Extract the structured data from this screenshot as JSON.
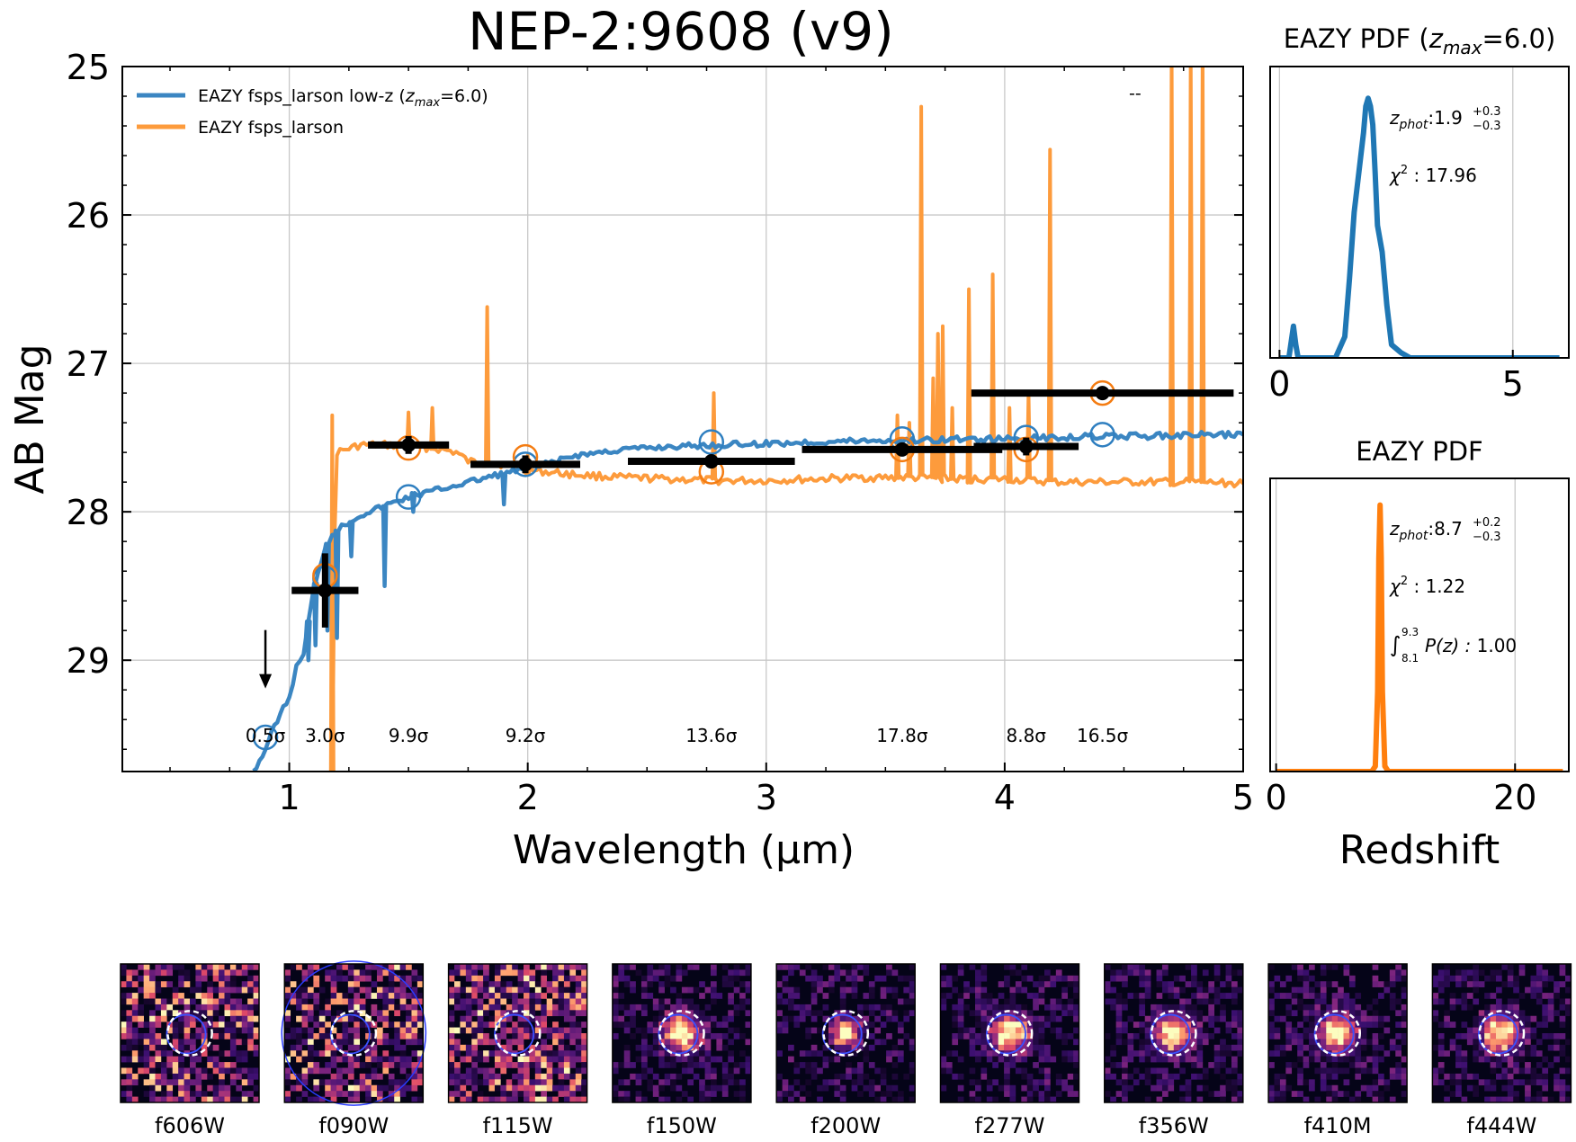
{
  "title": "NEP-2:9608 (v9)",
  "colors": {
    "blue": "#3b86c2",
    "orange": "#fd9b3c",
    "orange_dark": "#f47c12",
    "black": "#000000"
  },
  "chart_data": [
    {
      "id": "sed",
      "type": "line",
      "title": "NEP-2:9608 (v9)",
      "xlabel": "Wavelength (µm)",
      "ylabel": "AB Mag",
      "xlim": [
        0.3,
        5.0
      ],
      "ylim": [
        29.75,
        25.0
      ],
      "xticks": [
        1,
        2,
        3,
        4,
        5
      ],
      "yticks": [
        25,
        26,
        27,
        28,
        29
      ],
      "grid": true,
      "legend": [
        {
          "label": "EAZY fsps_larson low-z (",
          "sub": "max",
          "tail": "=6.0)",
          "color": "#3b86c2"
        },
        {
          "label": "EAZY fsps_larson",
          "color": "#fd9b3c"
        }
      ],
      "corner_mark": "--",
      "series": [
        {
          "name": "EAZY fsps_larson low-z (z_max=6.0)",
          "color": "#3b86c2",
          "x": [
            0.85,
            0.9,
            0.95,
            1.0,
            1.03,
            1.06,
            1.08,
            1.1,
            1.12,
            1.15,
            1.18,
            1.22,
            1.3,
            1.4,
            1.5,
            1.6,
            1.7,
            1.8,
            1.9,
            2.0,
            2.1,
            2.2,
            2.4,
            2.6,
            2.8,
            3.0,
            3.2,
            3.4,
            3.6,
            3.8,
            4.0,
            4.2,
            4.4,
            4.6,
            4.8,
            5.0
          ],
          "y": [
            29.75,
            29.6,
            29.4,
            29.25,
            29.05,
            28.95,
            28.75,
            28.55,
            28.4,
            28.25,
            28.15,
            28.1,
            28.02,
            27.96,
            27.9,
            27.86,
            27.82,
            27.78,
            27.74,
            27.71,
            27.67,
            27.62,
            27.58,
            27.56,
            27.55,
            27.54,
            27.53,
            27.52,
            27.52,
            27.51,
            27.51,
            27.5,
            27.49,
            27.49,
            27.48,
            27.48
          ],
          "dips": [
            [
              1.08,
              29.0
            ],
            [
              1.11,
              28.9
            ],
            [
              1.16,
              28.8
            ],
            [
              1.2,
              28.85
            ],
            [
              1.26,
              28.3
            ],
            [
              1.4,
              28.5
            ],
            [
              1.52,
              28.0
            ],
            [
              1.9,
              27.95
            ]
          ]
        },
        {
          "name": "EAZY fsps_larson",
          "color": "#fd9b3c",
          "x": [
            1.18,
            1.19,
            1.2,
            1.3,
            1.4,
            1.5,
            1.6,
            1.7,
            1.75,
            1.8,
            1.9,
            2.0,
            2.2,
            2.4,
            2.6,
            2.8,
            3.0,
            3.2,
            3.4,
            3.6,
            3.8,
            4.0,
            4.2,
            4.4,
            4.6,
            4.8,
            5.0
          ],
          "y": [
            29.9,
            28.2,
            27.6,
            27.55,
            27.55,
            27.56,
            27.57,
            27.6,
            27.66,
            27.67,
            27.68,
            27.72,
            27.75,
            27.77,
            27.78,
            27.79,
            27.79,
            27.78,
            27.77,
            27.77,
            27.78,
            27.78,
            27.8,
            27.8,
            27.8,
            27.8,
            27.81
          ],
          "spikes": [
            [
              1.18,
              27.35
            ],
            [
              1.5,
              27.33
            ],
            [
              1.6,
              27.3
            ],
            [
              1.83,
              26.62
            ],
            [
              2.0,
              27.62
            ],
            [
              2.78,
              27.2
            ],
            [
              3.55,
              27.35
            ],
            [
              3.6,
              27.4
            ],
            [
              3.65,
              25.27
            ],
            [
              3.7,
              27.1
            ],
            [
              3.72,
              26.8
            ],
            [
              3.74,
              26.75
            ],
            [
              3.78,
              27.3
            ],
            [
              3.85,
              26.5
            ],
            [
              3.95,
              26.4
            ],
            [
              4.02,
              27.3
            ],
            [
              4.1,
              27.2
            ],
            [
              4.19,
              25.56
            ],
            [
              4.7,
              24.9
            ],
            [
              4.78,
              24.9
            ],
            [
              4.83,
              24.9
            ]
          ]
        }
      ],
      "photometry": [
        {
          "x": 0.9,
          "xerr": 0.0,
          "y": 29.13,
          "yerr": 0.0,
          "upper_limit": true
        },
        {
          "x": 1.15,
          "xerr": 0.14,
          "y": 28.53,
          "yerr": 0.25
        },
        {
          "x": 1.5,
          "xerr": 0.17,
          "y": 27.55,
          "yerr": 0.06
        },
        {
          "x": 1.99,
          "xerr": 0.23,
          "y": 27.68,
          "yerr": 0.06
        },
        {
          "x": 2.77,
          "xerr": 0.35,
          "y": 27.66,
          "yerr": 0.04
        },
        {
          "x": 3.57,
          "xerr": 0.42,
          "y": 27.58,
          "yerr": 0.03
        },
        {
          "x": 4.09,
          "xerr": 0.22,
          "y": 27.56,
          "yerr": 0.06
        },
        {
          "x": 4.41,
          "xerr": 0.55,
          "y": 27.2,
          "yerr": 0.03
        }
      ],
      "model_blue": [
        [
          0.9,
          29.52
        ],
        [
          1.15,
          28.45
        ],
        [
          1.5,
          27.9
        ],
        [
          1.99,
          27.68
        ],
        [
          2.77,
          27.53
        ],
        [
          3.57,
          27.51
        ],
        [
          4.09,
          27.5
        ],
        [
          4.41,
          27.48
        ]
      ],
      "model_orange": [
        [
          1.15,
          28.43
        ],
        [
          1.5,
          27.57
        ],
        [
          1.99,
          27.63
        ],
        [
          2.77,
          27.73
        ],
        [
          3.57,
          27.58
        ],
        [
          4.09,
          27.58
        ],
        [
          4.41,
          27.2
        ]
      ],
      "snr_labels": [
        {
          "x": 0.9,
          "text": "0.5σ"
        },
        {
          "x": 1.15,
          "text": "3.0σ"
        },
        {
          "x": 1.5,
          "text": "9.9σ"
        },
        {
          "x": 1.99,
          "text": "9.2σ"
        },
        {
          "x": 2.77,
          "text": "13.6σ"
        },
        {
          "x": 3.57,
          "text": "17.8σ"
        },
        {
          "x": 4.09,
          "text": "8.8σ"
        },
        {
          "x": 4.41,
          "text": "16.5σ"
        }
      ]
    },
    {
      "id": "pdf_lowz",
      "type": "line",
      "title": "EAZY PDF (",
      "title_sub": "max",
      "title_tail": "=6.0)",
      "xlim": [
        -0.2,
        6.2
      ],
      "xticks": [
        0,
        5
      ],
      "ylim": [
        0,
        1.1
      ],
      "color": "#1f77b4",
      "x": [
        0.0,
        0.2,
        0.3,
        0.35,
        0.4,
        0.5,
        1.2,
        1.4,
        1.5,
        1.6,
        1.7,
        1.8,
        1.85,
        1.9,
        1.95,
        2.0,
        2.05,
        2.1,
        2.2,
        2.3,
        2.4,
        2.6,
        2.8,
        3.5,
        6.0
      ],
      "y": [
        0.0,
        0.0,
        0.12,
        0.05,
        0.0,
        0.0,
        0.0,
        0.08,
        0.3,
        0.55,
        0.7,
        0.85,
        0.95,
        0.98,
        0.95,
        0.88,
        0.7,
        0.5,
        0.4,
        0.2,
        0.05,
        0.02,
        0.0,
        0.0,
        0.0
      ],
      "annotations": {
        "zphot": "1.9",
        "zup": "+0.3",
        "zlo": "−0.3",
        "chi2": "17.96"
      }
    },
    {
      "id": "pdf_full",
      "type": "line",
      "title": "EAZY PDF",
      "xlabel": "Redshift",
      "xlim": [
        -0.5,
        24.5
      ],
      "xticks": [
        0,
        20
      ],
      "ylim": [
        0,
        1.1
      ],
      "color": "#ff7f0e",
      "x": [
        0.0,
        8.0,
        8.3,
        8.5,
        8.6,
        8.7,
        8.8,
        8.9,
        9.1,
        9.4,
        24.0
      ],
      "y": [
        0.0,
        0.0,
        0.02,
        0.3,
        0.8,
        1.0,
        0.8,
        0.3,
        0.02,
        0.0,
        0.0
      ],
      "annotations": {
        "zphot": "8.7",
        "zup": "+0.2",
        "zlo": "−0.3",
        "chi2": "1.22",
        "int_lo": "8.1",
        "int_hi": "9.3",
        "pz": "1.00"
      }
    }
  ],
  "labels": {
    "zphot_sub": "phot",
    "zphot_sep": ":",
    "chi_prefix": "χ",
    "chi_sup": "2",
    "chi_sep": " : ",
    "int_symbol": "∫",
    "int_body": "P(z) : "
  },
  "cutouts": [
    {
      "filter": "f606W",
      "kind": "noise",
      "dark": true
    },
    {
      "filter": "f090W",
      "kind": "noise",
      "dark": true,
      "big_circle": true
    },
    {
      "filter": "f115W",
      "kind": "noise",
      "dark": false
    },
    {
      "filter": "f150W",
      "kind": "source",
      "dark": false
    },
    {
      "filter": "f200W",
      "kind": "source_small",
      "dark": false
    },
    {
      "filter": "f277W",
      "kind": "source",
      "dark": false
    },
    {
      "filter": "f356W",
      "kind": "source",
      "dark": false
    },
    {
      "filter": "f410M",
      "kind": "source",
      "dark": false
    },
    {
      "filter": "f444W",
      "kind": "source",
      "dark": false
    }
  ]
}
